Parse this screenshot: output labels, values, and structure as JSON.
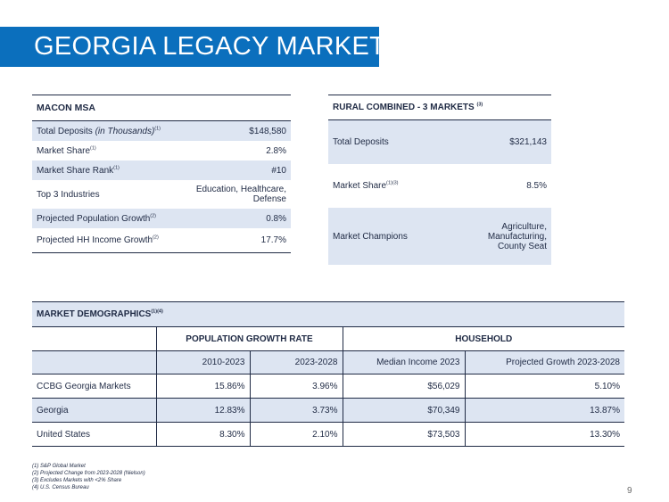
{
  "header": {
    "title": "GEORGIA LEGACY MARKET"
  },
  "macon": {
    "title": "MACON MSA",
    "rows": [
      {
        "label": "Total Deposits ",
        "label_italic": "(in Thousands)",
        "sup": "(1)",
        "value": "$148,580"
      },
      {
        "label": "Market Share",
        "sup": "(1)",
        "value": "2.8%"
      },
      {
        "label": "Market Share Rank",
        "sup": "(1)",
        "value": "#10"
      },
      {
        "label": "Top 3 Industries",
        "sup": "",
        "value_line1": "Education, Healthcare,",
        "value_line2": "Defense"
      },
      {
        "label": "Projected Population Growth",
        "sup": "(2)",
        "value": "0.8%"
      },
      {
        "label": "Projected HH Income Growth",
        "sup": "(2)",
        "value": "17.7%"
      }
    ]
  },
  "rural": {
    "title": "RURAL COMBINED - 3 MARKETS ",
    "title_sup": "(3)",
    "rows": [
      {
        "label": "Total Deposits",
        "sup": "",
        "value": "$321,143"
      },
      {
        "label": "Market Share",
        "sup": "(1)(3)",
        "value": "8.5%"
      },
      {
        "label": "Market Champions",
        "sup": "",
        "value_line1": "Agriculture,",
        "value_line2": "Manufacturing,",
        "value_line3": "County Seat"
      }
    ]
  },
  "demographics": {
    "title": "MARKET DEMOGRAPHICS",
    "title_sup": "(1)(4)",
    "group1": "POPULATION GROWTH RATE",
    "group2": "HOUSEHOLD",
    "columns": [
      "2010-2023",
      "2023-2028",
      "Median Income 2023",
      "Projected Growth 2023-2028"
    ],
    "rows": [
      {
        "label": "CCBG Georgia Markets",
        "values": [
          "15.86%",
          "3.96%",
          "$56,029",
          "5.10%"
        ]
      },
      {
        "label": "Georgia",
        "values": [
          "12.83%",
          "3.73%",
          "$70,349",
          "13.87%"
        ]
      },
      {
        "label": "United States",
        "values": [
          "8.30%",
          "2.10%",
          "$73,503",
          "13.30%"
        ]
      }
    ]
  },
  "footnotes": [
    "(1) S&P Global Market",
    "(2) Projected Change from 2023-2028 (Nielson)",
    "(3) Excludes Markets with <2% Share",
    "(4) U.S. Census Bureau"
  ],
  "page_number": "9"
}
